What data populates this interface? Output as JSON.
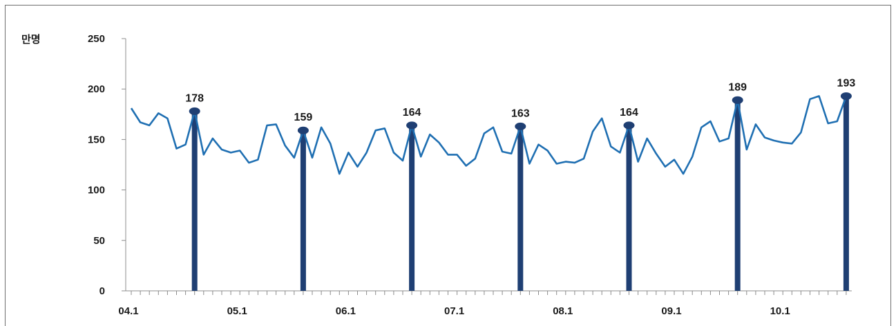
{
  "chart_data": {
    "type": "line",
    "ylabel": "만명",
    "ylim": [
      0,
      250
    ],
    "yticks": [
      0,
      50,
      100,
      150,
      200,
      250
    ],
    "x_tick_labels": [
      "04.1",
      "05.1",
      "06.1",
      "07.1",
      "08.1",
      "09.1",
      "10.1"
    ],
    "grid": false,
    "colors": {
      "line": "#1f6fb2",
      "spike": "#1f3f73",
      "axis": "#8c8c8c"
    },
    "series": [
      {
        "values": [
          181,
          167,
          164,
          176,
          171,
          141,
          145,
          178,
          135,
          151,
          140,
          137,
          139,
          127,
          130,
          164,
          165,
          144,
          132,
          159,
          132,
          162,
          146,
          116,
          137,
          123,
          137,
          159,
          161,
          137,
          129,
          164,
          133,
          155,
          147,
          135,
          135,
          124,
          131,
          156,
          162,
          138,
          136,
          163,
          126,
          145,
          139,
          126,
          128,
          127,
          131,
          158,
          171,
          143,
          137,
          164,
          128,
          151,
          136,
          123,
          130,
          116,
          133,
          162,
          168,
          148,
          151,
          189,
          140,
          165,
          152,
          149,
          147,
          146,
          157,
          190,
          193,
          166,
          168,
          193
        ]
      }
    ],
    "annotations": [
      {
        "label": "178",
        "index": 7,
        "value": 178
      },
      {
        "label": "159",
        "index": 19,
        "value": 159
      },
      {
        "label": "164",
        "index": 31,
        "value": 164
      },
      {
        "label": "163",
        "index": 43,
        "value": 163
      },
      {
        "label": "164",
        "index": 55,
        "value": 164
      },
      {
        "label": "189",
        "index": 67,
        "value": 189
      },
      {
        "label": "193",
        "index": 79,
        "value": 193
      }
    ]
  }
}
